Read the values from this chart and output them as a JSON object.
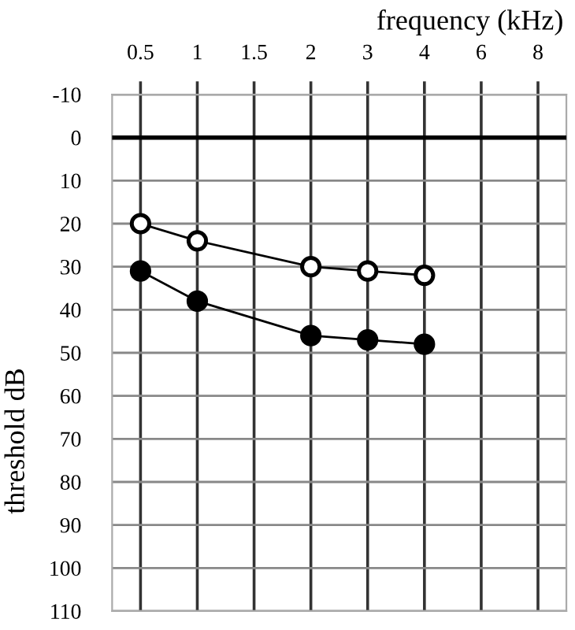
{
  "chart_data": {
    "type": "line",
    "xlabel": "frequency (kHz)",
    "ylabel": "threshold dB",
    "categories": [
      "0.5",
      "1",
      "1.5",
      "2",
      "3",
      "4",
      "6",
      "8"
    ],
    "series": [
      {
        "color": "#ffffff",
        "values": [
          20,
          24,
          null,
          30,
          31,
          32,
          null,
          null
        ]
      },
      {
        "color": "#000000",
        "values": [
          31,
          38,
          null,
          46,
          47,
          48,
          null,
          null
        ]
      }
    ],
    "ylim": [
      110,
      -10
    ],
    "yticks": [
      -10,
      0,
      10,
      20,
      30,
      40,
      50,
      60,
      70,
      80,
      90,
      100,
      110
    ],
    "ref_lines": [
      {
        "axis": "y",
        "value": 0,
        "color": "#000000"
      }
    ],
    "grid": true,
    "marker": "circle",
    "line_style": "solid",
    "legend": false
  }
}
